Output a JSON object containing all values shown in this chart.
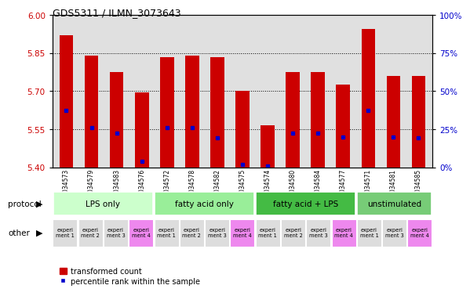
{
  "title": "GDS5311 / ILMN_3073643",
  "samples": [
    "GSM1034573",
    "GSM1034579",
    "GSM1034583",
    "GSM1034576",
    "GSM1034572",
    "GSM1034578",
    "GSM1034582",
    "GSM1034575",
    "GSM1034574",
    "GSM1034580",
    "GSM1034584",
    "GSM1034577",
    "GSM1034571",
    "GSM1034581",
    "GSM1034585"
  ],
  "bar_heights": [
    5.92,
    5.84,
    5.775,
    5.695,
    5.835,
    5.84,
    5.835,
    5.7,
    5.565,
    5.775,
    5.775,
    5.725,
    5.945,
    5.76,
    5.76
  ],
  "blue_dot_y": [
    5.625,
    5.555,
    5.535,
    5.425,
    5.555,
    5.555,
    5.515,
    5.41,
    5.405,
    5.535,
    5.535,
    5.52,
    5.625,
    5.52,
    5.515
  ],
  "bar_bottom": 5.4,
  "ylim": [
    5.4,
    6.0
  ],
  "yticks_left": [
    5.4,
    5.55,
    5.7,
    5.85,
    6.0
  ],
  "yticks_right": [
    0,
    25,
    50,
    75,
    100
  ],
  "bar_color": "#cc0000",
  "dot_color": "#0000cc",
  "groups": [
    {
      "label": "LPS only",
      "start": 0,
      "end": 4,
      "color": "#ccffcc"
    },
    {
      "label": "fatty acid only",
      "start": 4,
      "end": 8,
      "color": "#99ee99"
    },
    {
      "label": "fatty acid + LPS",
      "start": 8,
      "end": 12,
      "color": "#44bb44"
    },
    {
      "label": "unstimulated",
      "start": 12,
      "end": 15,
      "color": "#77cc77"
    }
  ],
  "other_labels": [
    "experi\nment 1",
    "experi\nment 2",
    "experi\nment 3",
    "experi\nment 4",
    "experi\nment 1",
    "experi\nment 2",
    "experi\nment 3",
    "experi\nment 4",
    "experi\nment 1",
    "experi\nment 2",
    "experi\nment 3",
    "experi\nment 4",
    "experi\nment 1",
    "experi\nment 3",
    "experi\nment 4"
  ],
  "other_colors": [
    "#dddddd",
    "#dddddd",
    "#dddddd",
    "#ee88ee",
    "#dddddd",
    "#dddddd",
    "#dddddd",
    "#ee88ee",
    "#dddddd",
    "#dddddd",
    "#dddddd",
    "#ee88ee",
    "#dddddd",
    "#dddddd",
    "#ee88ee"
  ],
  "protocol_label": "protocol",
  "other_label": "other",
  "legend_red": "transformed count",
  "legend_blue": "percentile rank within the sample",
  "plot_bg": "#ffffff",
  "chart_bg": "#e0e0e0"
}
